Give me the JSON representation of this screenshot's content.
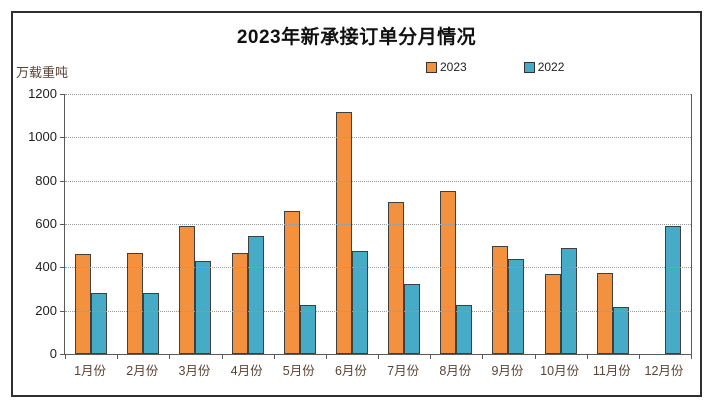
{
  "chart_data": {
    "type": "bar",
    "title": "2023年新承接订单分月情况",
    "unit_label": "万载重吨",
    "categories": [
      "1月份",
      "2月份",
      "3月份",
      "4月份",
      "5月份",
      "6月份",
      "7月份",
      "8月份",
      "9月份",
      "10月份",
      "11月份",
      "12月份"
    ],
    "series": [
      {
        "name": "2023",
        "color": "#F4913E",
        "values": [
          460,
          464,
          591,
          467,
          658,
          1118,
          701,
          752,
          500,
          370,
          374,
          null
        ]
      },
      {
        "name": "2022",
        "color": "#45ABC7",
        "values": [
          283,
          283,
          427,
          546,
          228,
          476,
          321,
          228,
          437,
          490,
          215,
          590
        ]
      }
    ],
    "ylim": [
      0,
      1200
    ],
    "yticks": [
      0,
      200,
      400,
      600,
      800,
      1000,
      1200
    ],
    "grid": "horizontal-dotted",
    "legend_position": "top-right",
    "bar_border_color": "#3f3f3f",
    "axis_color": "#5a5a5a",
    "gridline_color": "#9a9a9a",
    "title_color": "#111111",
    "xlabel_color": "#5a4336"
  }
}
